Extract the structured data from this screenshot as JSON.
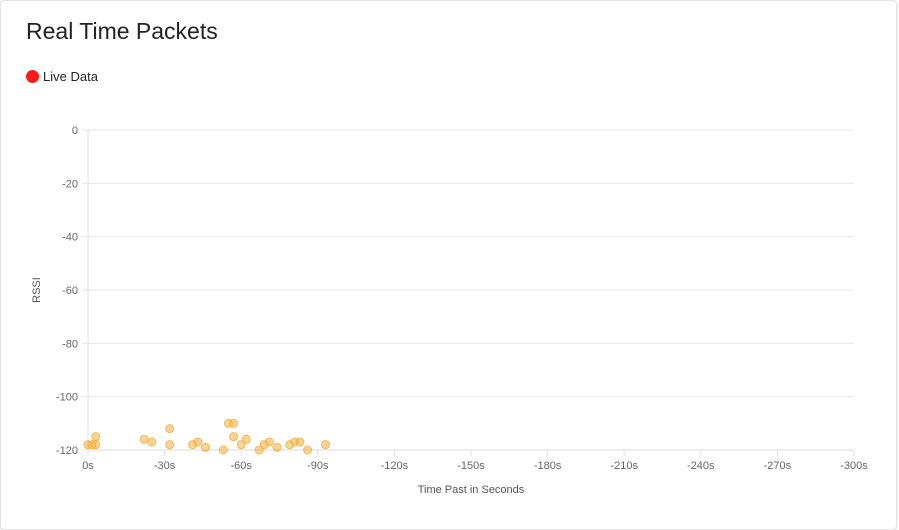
{
  "title": "Real Time Packets",
  "legend": {
    "label": "Live Data",
    "color": "#ff1a1a"
  },
  "chart_data": {
    "type": "scatter",
    "xlabel": "Time Past in Seconds",
    "ylabel": "RSSI",
    "xlim": [
      0,
      -300
    ],
    "ylim": [
      -120,
      0
    ],
    "x_ticks": [
      0,
      -30,
      -60,
      -90,
      -120,
      -150,
      -180,
      -210,
      -240,
      -270,
      -300
    ],
    "x_tick_labels": [
      "0s",
      "-30s",
      "-60s",
      "-90s",
      "-120s",
      "-150s",
      "-180s",
      "-210s",
      "-240s",
      "-270s",
      "-300s"
    ],
    "y_ticks": [
      0,
      -20,
      -40,
      -60,
      -80,
      -100,
      -120
    ],
    "y_tick_labels": [
      "0",
      "-20",
      "-40",
      "-60",
      "-80",
      "-100",
      "-120"
    ],
    "grid": true,
    "point_color": "#f5b041",
    "points": [
      {
        "x": 0,
        "y": -118
      },
      {
        "x": -1.5,
        "y": -118
      },
      {
        "x": -3,
        "y": -115
      },
      {
        "x": -3,
        "y": -118
      },
      {
        "x": -22,
        "y": -116
      },
      {
        "x": -25,
        "y": -117
      },
      {
        "x": -32,
        "y": -112
      },
      {
        "x": -32,
        "y": -118
      },
      {
        "x": -41,
        "y": -118
      },
      {
        "x": -43,
        "y": -117
      },
      {
        "x": -46,
        "y": -119
      },
      {
        "x": -53,
        "y": -120
      },
      {
        "x": -55,
        "y": -110
      },
      {
        "x": -57,
        "y": -110
      },
      {
        "x": -57,
        "y": -115
      },
      {
        "x": -60,
        "y": -118
      },
      {
        "x": -62,
        "y": -116
      },
      {
        "x": -67,
        "y": -120
      },
      {
        "x": -69,
        "y": -118
      },
      {
        "x": -71,
        "y": -117
      },
      {
        "x": -74,
        "y": -119
      },
      {
        "x": -79,
        "y": -118
      },
      {
        "x": -81,
        "y": -117
      },
      {
        "x": -83,
        "y": -117
      },
      {
        "x": -86,
        "y": -120
      },
      {
        "x": -93,
        "y": -118
      }
    ]
  }
}
